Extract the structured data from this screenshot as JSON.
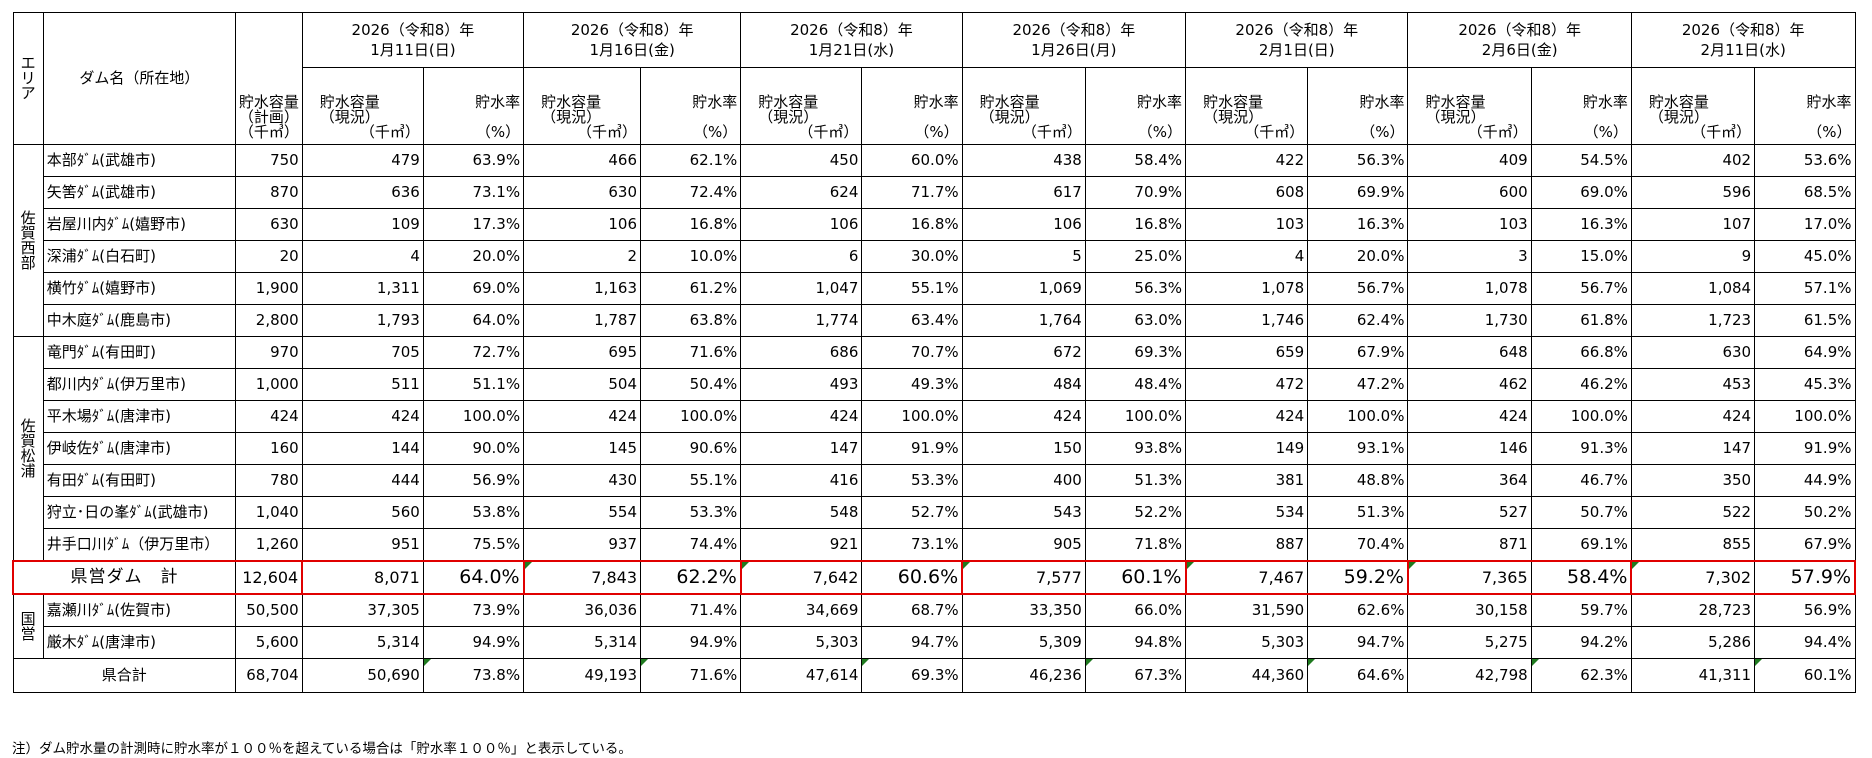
{
  "header": {
    "area": "エリア",
    "dam_name": "ダム名（所在地）",
    "capacity_plan_lines": [
      "貯水容量",
      "（計画）",
      "（千㎥）"
    ],
    "capacity_now_lines": [
      "貯水容量",
      "（現況）",
      "（千㎥）"
    ],
    "rate_lines": [
      "貯水率",
      "",
      "（%）"
    ],
    "dates": [
      {
        "year": "2026（令和8）年",
        "day": "1月11日(日)"
      },
      {
        "year": "2026（令和8）年",
        "day": "1月16日(金)"
      },
      {
        "year": "2026（令和8）年",
        "day": "1月21日(水)"
      },
      {
        "year": "2026（令和8）年",
        "day": "1月26日(月)"
      },
      {
        "year": "2026（令和8）年",
        "day": "2月1日(日)"
      },
      {
        "year": "2026（令和8）年",
        "day": "2月6日(金)"
      },
      {
        "year": "2026（令和8）年",
        "day": "2月11日(水)"
      }
    ]
  },
  "groups": [
    {
      "area": "佐賀西部",
      "rows": [
        {
          "name": "本部ﾀﾞﾑ(武雄市)",
          "plan": "750",
          "vals": [
            [
              "479",
              "63.9%"
            ],
            [
              "466",
              "62.1%"
            ],
            [
              "450",
              "60.0%"
            ],
            [
              "438",
              "58.4%"
            ],
            [
              "422",
              "56.3%"
            ],
            [
              "409",
              "54.5%"
            ],
            [
              "402",
              "53.6%"
            ]
          ]
        },
        {
          "name": "矢筈ﾀﾞﾑ(武雄市)",
          "plan": "870",
          "vals": [
            [
              "636",
              "73.1%"
            ],
            [
              "630",
              "72.4%"
            ],
            [
              "624",
              "71.7%"
            ],
            [
              "617",
              "70.9%"
            ],
            [
              "608",
              "69.9%"
            ],
            [
              "600",
              "69.0%"
            ],
            [
              "596",
              "68.5%"
            ]
          ]
        },
        {
          "name": "岩屋川内ﾀﾞﾑ(嬉野市)",
          "plan": "630",
          "vals": [
            [
              "109",
              "17.3%"
            ],
            [
              "106",
              "16.8%"
            ],
            [
              "106",
              "16.8%"
            ],
            [
              "106",
              "16.8%"
            ],
            [
              "103",
              "16.3%"
            ],
            [
              "103",
              "16.3%"
            ],
            [
              "107",
              "17.0%"
            ]
          ]
        },
        {
          "name": "深浦ﾀﾞﾑ(白石町)",
          "plan": "20",
          "vals": [
            [
              "4",
              "20.0%"
            ],
            [
              "2",
              "10.0%"
            ],
            [
              "6",
              "30.0%"
            ],
            [
              "5",
              "25.0%"
            ],
            [
              "4",
              "20.0%"
            ],
            [
              "3",
              "15.0%"
            ],
            [
              "9",
              "45.0%"
            ]
          ]
        },
        {
          "name": "横竹ﾀﾞﾑ(嬉野市)",
          "plan": "1,900",
          "vals": [
            [
              "1,311",
              "69.0%"
            ],
            [
              "1,163",
              "61.2%"
            ],
            [
              "1,047",
              "55.1%"
            ],
            [
              "1,069",
              "56.3%"
            ],
            [
              "1,078",
              "56.7%"
            ],
            [
              "1,078",
              "56.7%"
            ],
            [
              "1,084",
              "57.1%"
            ]
          ]
        },
        {
          "name": "中木庭ﾀﾞﾑ(鹿島市)",
          "plan": "2,800",
          "vals": [
            [
              "1,793",
              "64.0%"
            ],
            [
              "1,787",
              "63.8%"
            ],
            [
              "1,774",
              "63.4%"
            ],
            [
              "1,764",
              "63.0%"
            ],
            [
              "1,746",
              "62.4%"
            ],
            [
              "1,730",
              "61.8%"
            ],
            [
              "1,723",
              "61.5%"
            ]
          ]
        }
      ]
    },
    {
      "area": "佐賀松浦",
      "rows": [
        {
          "name": "竜門ﾀﾞﾑ(有田町)",
          "plan": "970",
          "vals": [
            [
              "705",
              "72.7%"
            ],
            [
              "695",
              "71.6%"
            ],
            [
              "686",
              "70.7%"
            ],
            [
              "672",
              "69.3%"
            ],
            [
              "659",
              "67.9%"
            ],
            [
              "648",
              "66.8%"
            ],
            [
              "630",
              "64.9%"
            ]
          ]
        },
        {
          "name": "都川内ﾀﾞﾑ(伊万里市)",
          "plan": "1,000",
          "vals": [
            [
              "511",
              "51.1%"
            ],
            [
              "504",
              "50.4%"
            ],
            [
              "493",
              "49.3%"
            ],
            [
              "484",
              "48.4%"
            ],
            [
              "472",
              "47.2%"
            ],
            [
              "462",
              "46.2%"
            ],
            [
              "453",
              "45.3%"
            ]
          ]
        },
        {
          "name": "平木場ﾀﾞﾑ(唐津市)",
          "plan": "424",
          "vals": [
            [
              "424",
              "100.0%"
            ],
            [
              "424",
              "100.0%"
            ],
            [
              "424",
              "100.0%"
            ],
            [
              "424",
              "100.0%"
            ],
            [
              "424",
              "100.0%"
            ],
            [
              "424",
              "100.0%"
            ],
            [
              "424",
              "100.0%"
            ]
          ]
        },
        {
          "name": "伊岐佐ﾀﾞﾑ(唐津市)",
          "plan": "160",
          "vals": [
            [
              "144",
              "90.0%"
            ],
            [
              "145",
              "90.6%"
            ],
            [
              "147",
              "91.9%"
            ],
            [
              "150",
              "93.8%"
            ],
            [
              "149",
              "93.1%"
            ],
            [
              "146",
              "91.3%"
            ],
            [
              "147",
              "91.9%"
            ]
          ]
        },
        {
          "name": "有田ﾀﾞﾑ(有田町)",
          "plan": "780",
          "vals": [
            [
              "444",
              "56.9%"
            ],
            [
              "430",
              "55.1%"
            ],
            [
              "416",
              "53.3%"
            ],
            [
              "400",
              "51.3%"
            ],
            [
              "381",
              "48.8%"
            ],
            [
              "364",
              "46.7%"
            ],
            [
              "350",
              "44.9%"
            ]
          ]
        },
        {
          "name": "狩立･日の峯ﾀﾞﾑ(武雄市)",
          "plan": "1,040",
          "vals": [
            [
              "560",
              "53.8%"
            ],
            [
              "554",
              "53.3%"
            ],
            [
              "548",
              "52.7%"
            ],
            [
              "543",
              "52.2%"
            ],
            [
              "534",
              "51.3%"
            ],
            [
              "527",
              "50.7%"
            ],
            [
              "522",
              "50.2%"
            ]
          ]
        },
        {
          "name": "井手口川ﾀﾞﾑ（伊万里市）",
          "plan": "1,260",
          "vals": [
            [
              "951",
              "75.5%"
            ],
            [
              "937",
              "74.4%"
            ],
            [
              "921",
              "73.1%"
            ],
            [
              "905",
              "71.8%"
            ],
            [
              "887",
              "70.4%"
            ],
            [
              "871",
              "69.1%"
            ],
            [
              "855",
              "67.9%"
            ]
          ]
        }
      ]
    }
  ],
  "pref_total": {
    "label": "県営ダム　計",
    "plan": "12,604",
    "vals": [
      [
        "8,071",
        "64.0%"
      ],
      [
        "7,843",
        "62.2%"
      ],
      [
        "7,642",
        "60.6%"
      ],
      [
        "7,577",
        "60.1%"
      ],
      [
        "7,467",
        "59.2%"
      ],
      [
        "7,365",
        "58.4%"
      ],
      [
        "7,302",
        "57.9%"
      ]
    ]
  },
  "national": {
    "area": "国営",
    "rows": [
      {
        "name": "嘉瀬川ﾀﾞﾑ(佐賀市)",
        "plan": "50,500",
        "vals": [
          [
            "37,305",
            "73.9%"
          ],
          [
            "36,036",
            "71.4%"
          ],
          [
            "34,669",
            "68.7%"
          ],
          [
            "33,350",
            "66.0%"
          ],
          [
            "31,590",
            "62.6%"
          ],
          [
            "30,158",
            "59.7%"
          ],
          [
            "28,723",
            "56.9%"
          ]
        ]
      },
      {
        "name": "厳木ﾀﾞﾑ(唐津市)",
        "plan": "5,600",
        "vals": [
          [
            "5,314",
            "94.9%"
          ],
          [
            "5,314",
            "94.9%"
          ],
          [
            "5,303",
            "94.7%"
          ],
          [
            "5,309",
            "94.8%"
          ],
          [
            "5,303",
            "94.7%"
          ],
          [
            "5,275",
            "94.2%"
          ],
          [
            "5,286",
            "94.4%"
          ]
        ]
      }
    ]
  },
  "grand_total": {
    "label": "県合計",
    "plan": "68,704",
    "vals": [
      [
        "50,690",
        "73.8%"
      ],
      [
        "49,193",
        "71.6%"
      ],
      [
        "47,614",
        "69.3%"
      ],
      [
        "46,236",
        "67.3%"
      ],
      [
        "44,360",
        "64.6%"
      ],
      [
        "42,798",
        "62.3%"
      ],
      [
        "41,311",
        "60.1%"
      ]
    ]
  },
  "note": "注）ダム貯水量の計測時に貯水率が１００％を超えている場合は「貯水率１００％」と表示している。",
  "colors": {
    "highlight_border": "#e00000",
    "cell_marker": "#1f7a1f"
  }
}
